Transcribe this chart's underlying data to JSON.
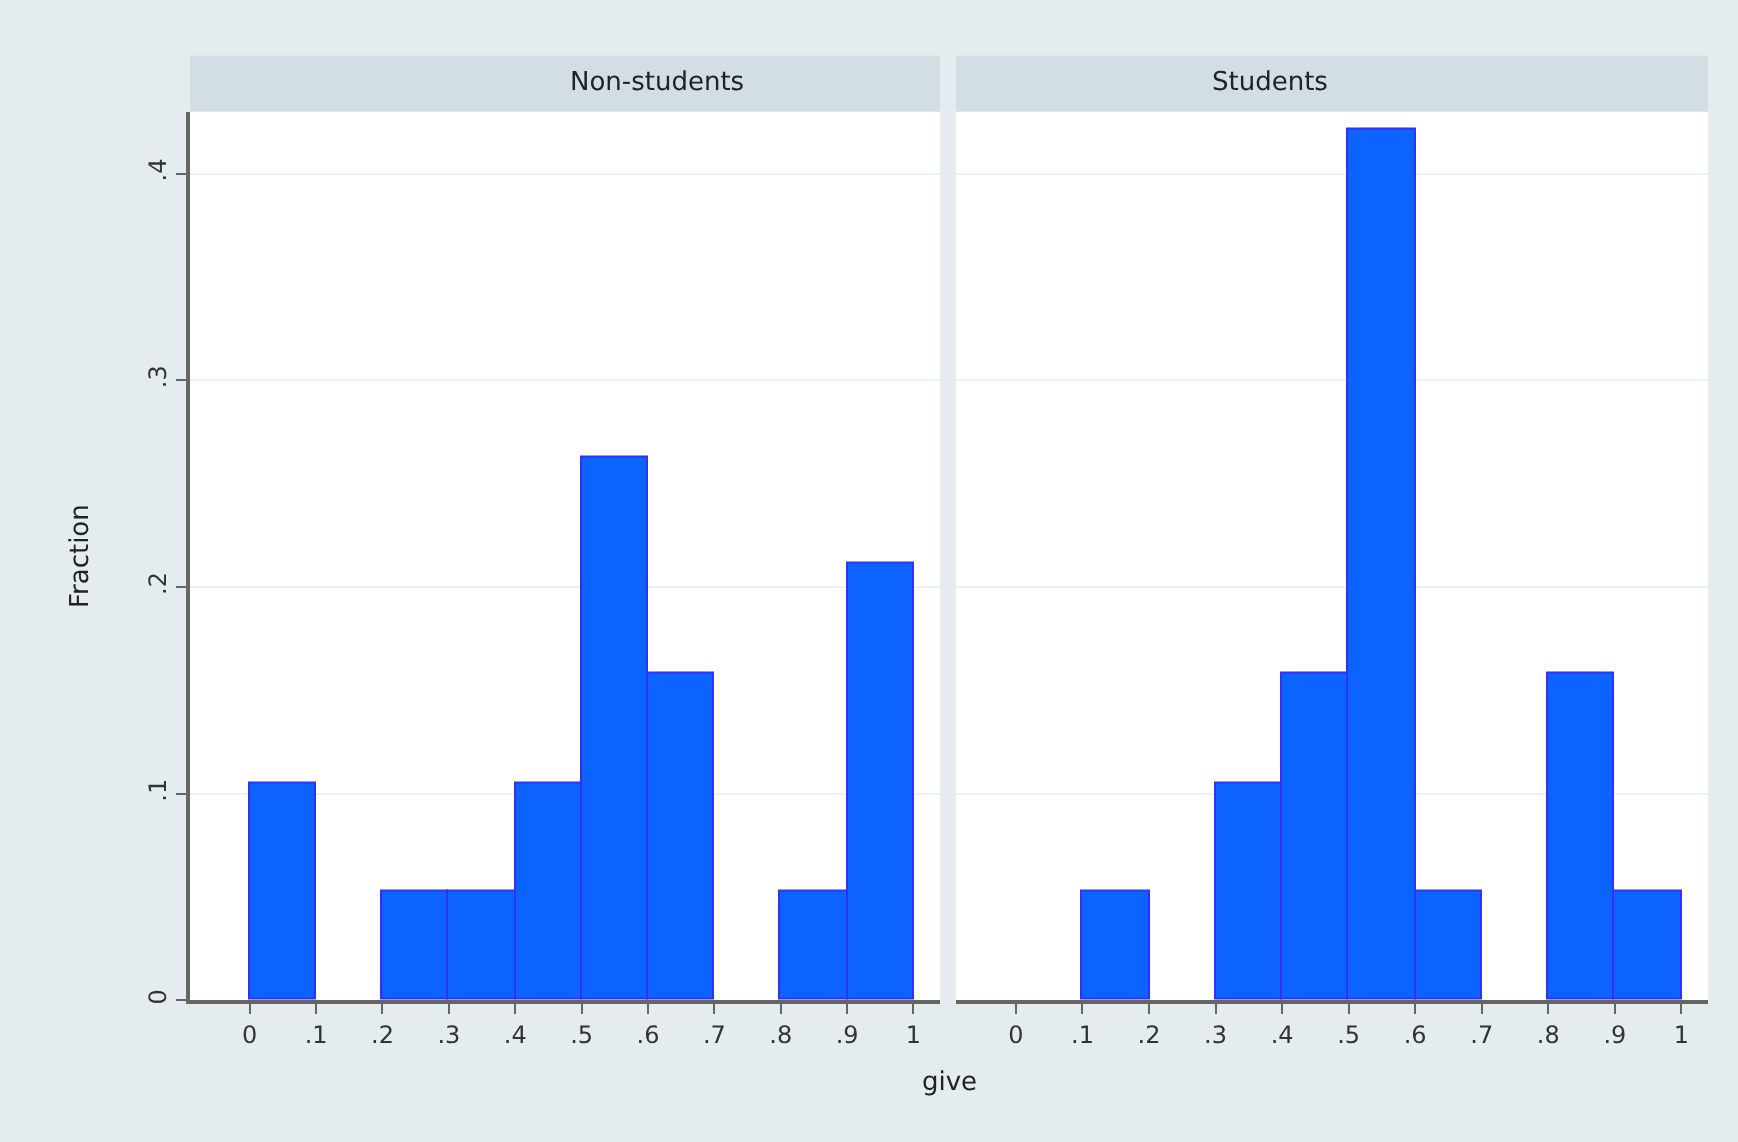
{
  "chart_data": [
    {
      "type": "histogram",
      "title": "Non-students",
      "xlabel": "give",
      "ylabel": "Fraction",
      "bins": [
        0,
        0.1,
        0.2,
        0.3,
        0.4,
        0.5,
        0.6,
        0.7,
        0.8,
        0.9,
        1
      ],
      "values": [
        0.105,
        0,
        0.053,
        0.053,
        0.105,
        0.263,
        0.158,
        0,
        0.053,
        0.211
      ],
      "color": "#0d63ff",
      "xlim": [
        -0.09,
        1.04
      ],
      "ylim": [
        0,
        0.43
      ],
      "xticks": [
        0,
        {
          "value": 0.1,
          "label": ".1"
        },
        {
          "value": 0.2,
          "label": ".2"
        },
        {
          "value": 0.3,
          "label": ".3"
        },
        {
          "value": 0.4,
          "label": ".4"
        },
        {
          "value": 0.5,
          "label": ".5"
        },
        {
          "value": 0.6,
          "label": ".6"
        },
        {
          "value": 0.7,
          "label": ".7"
        },
        {
          "value": 0.8,
          "label": ".8"
        },
        {
          "value": 0.9,
          "label": ".9"
        },
        1
      ],
      "yticks": [
        0,
        {
          "value": 0.1,
          "label": ".1"
        },
        {
          "value": 0.2,
          "label": ".2"
        },
        {
          "value": 0.3,
          "label": ".3"
        },
        {
          "value": 0.4,
          "label": ".4"
        }
      ],
      "grid": "y"
    },
    {
      "type": "histogram",
      "title": "Students",
      "bins": [
        0,
        0.1,
        0.2,
        0.3,
        0.4,
        0.5,
        0.6,
        0.7,
        0.8,
        0.9,
        1
      ],
      "values": [
        0,
        0.053,
        0,
        0.105,
        0.158,
        0.421,
        0.053,
        0,
        0.158,
        0.053
      ],
      "color": "#0d63ff",
      "xlim": [
        -0.09,
        1.04
      ],
      "ylim": [
        0,
        0.43
      ],
      "xticks": [
        0,
        {
          "value": 0.1,
          "label": ".1"
        },
        {
          "value": 0.2,
          "label": ".2"
        },
        {
          "value": 0.3,
          "label": ".3"
        },
        {
          "value": 0.4,
          "label": ".4"
        },
        {
          "value": 0.5,
          "label": ".5"
        },
        {
          "value": 0.6,
          "label": ".6"
        },
        {
          "value": 0.7,
          "label": ".7"
        },
        {
          "value": 0.8,
          "label": ".8"
        },
        {
          "value": 0.9,
          "label": ".9"
        },
        1
      ],
      "yticks": [
        {
          "value": 0,
          "label": null
        },
        {
          "value": 0.1,
          "label": null
        },
        {
          "value": 0.2,
          "label": null
        },
        {
          "value": 0.3,
          "label": null
        },
        {
          "value": 0.4,
          "label": null
        }
      ],
      "grid": "y",
      "tick_labels": "x"
    }
  ]
}
